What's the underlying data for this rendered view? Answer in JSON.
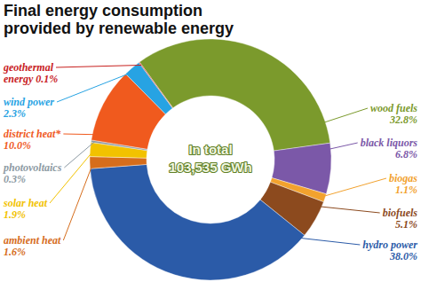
{
  "chart_data": {
    "type": "pie",
    "title": "Final energy consumption provided by renewable energy",
    "annotations": [
      "In total",
      "103,535 GWh"
    ],
    "categories": [
      "wood fuels",
      "black liquors",
      "biogas",
      "biofuels",
      "hydro power",
      "ambient heat",
      "solar heat",
      "photovoltaics",
      "district heat*",
      "wind power",
      "geothermal energy"
    ],
    "values": [
      32.8,
      6.8,
      1.1,
      5.1,
      38.0,
      1.6,
      1.9,
      0.3,
      10.0,
      2.3,
      0.1
    ],
    "value_labels": [
      "32.8%",
      "6.8%",
      "1.1%",
      "5.1%",
      "38.0%",
      "1.6%",
      "1.9%",
      "0.3%",
      "10.0%",
      "2.3%",
      "0.1%"
    ],
    "colors": [
      "#7b9a2c",
      "#7b58a8",
      "#f2a22e",
      "#8c4a1e",
      "#2b5ba8",
      "#d66d1c",
      "#f2c200",
      "#8d9aa3",
      "#f05a1e",
      "#27a3e3",
      "#c8201e"
    ],
    "data_labels": true
  }
}
